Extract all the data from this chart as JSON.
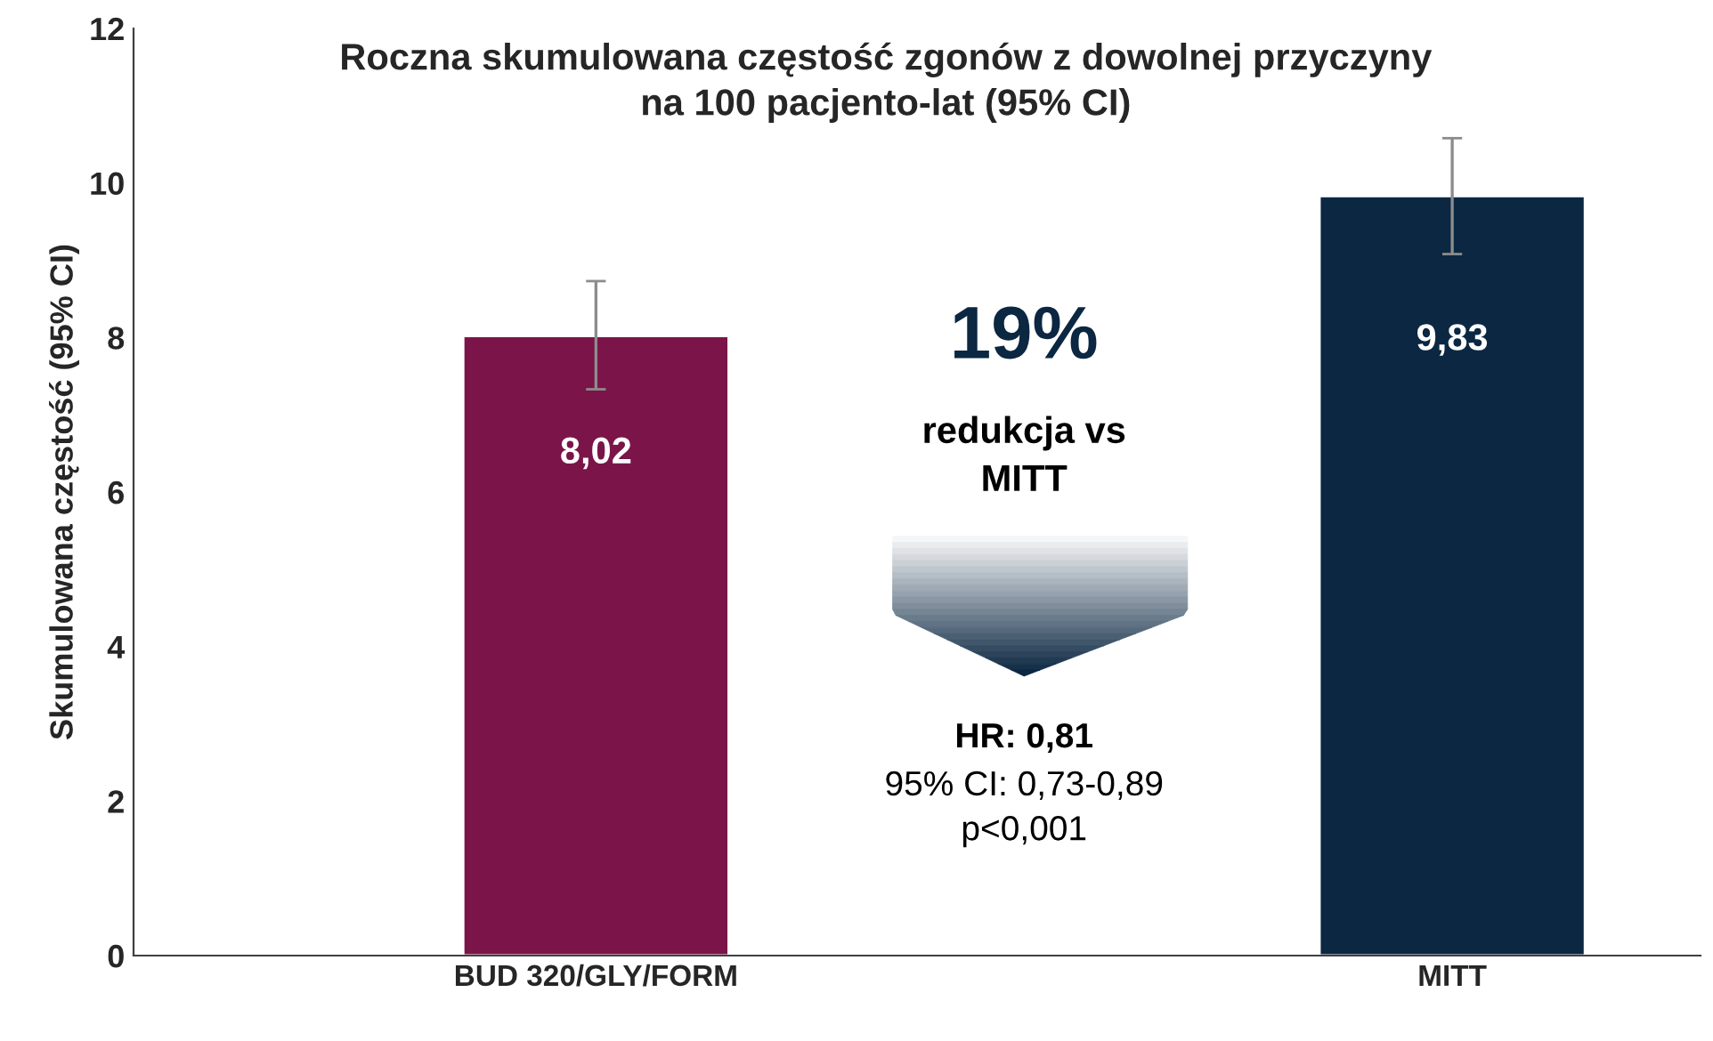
{
  "chart_data": {
    "type": "bar",
    "title": "Roczna skumulowana częstość zgonów z dowolnej przyczyny\nna 100 pacjento-lat (95% CI)",
    "ylabel": "Skumulowana częstość (95% CI)",
    "categories": [
      "BUD 320/GLY/FORM",
      "MITT"
    ],
    "values": [
      8.02,
      9.83
    ],
    "colors": [
      "#7b1449",
      "#0b2742"
    ],
    "value_labels": [
      "8,02",
      "9,83"
    ],
    "errors": [
      [
        7.33,
        8.73
      ],
      [
        9.08,
        10.58
      ]
    ],
    "ylim": [
      0,
      12
    ],
    "yticks": [
      0,
      2,
      4,
      6,
      8,
      10,
      12
    ],
    "grid": false,
    "annotations": [
      "19%",
      "redukcja vs\nMITT",
      "HR: 0,81",
      "95% CI: 0,73-0,89\np<0,001"
    ]
  }
}
